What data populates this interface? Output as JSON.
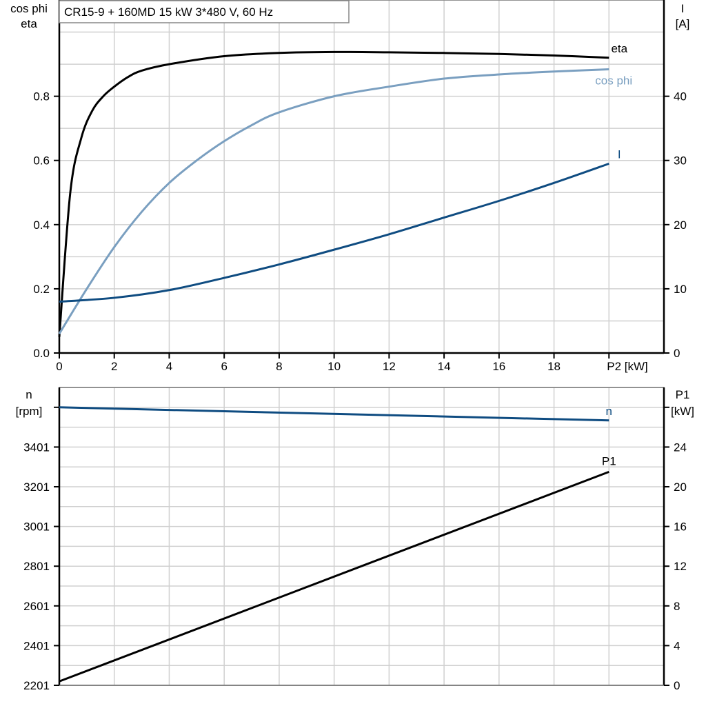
{
  "title": "CR15-9 + 160MD   15 kW   3*480 V, 60 Hz",
  "colors": {
    "eta": "#000000",
    "cos_phi": "#7a9fc0",
    "I": "#0f4c81",
    "n": "#0f4c81",
    "P1": "#000000",
    "grid": "#d0d0d0"
  },
  "chart_data": [
    {
      "type": "line",
      "xlabel": "P2 [kW]",
      "xlim": [
        0,
        22
      ],
      "xticks": [
        0,
        2,
        4,
        6,
        8,
        10,
        12,
        14,
        16,
        18
      ],
      "ylabel_left": [
        "cos phi",
        "eta"
      ],
      "ylim_left": [
        0,
        1.1
      ],
      "yticks_left": [
        "0.0",
        "0.2",
        "0.4",
        "0.6",
        "0.8"
      ],
      "ylabel_right": [
        "I",
        "[A]"
      ],
      "ylim_right": [
        0,
        55
      ],
      "yticks_right": [
        "0",
        "10",
        "20",
        "30",
        "40"
      ],
      "grid": true,
      "series": [
        {
          "name": "eta",
          "axis": "left",
          "x": [
            0,
            0.4,
            0.8,
            1.2,
            1.6,
            2,
            2.5,
            3,
            4,
            6,
            8,
            10,
            12,
            14,
            16,
            18,
            20
          ],
          "y": [
            0.05,
            0.5,
            0.67,
            0.755,
            0.8,
            0.83,
            0.86,
            0.88,
            0.9,
            0.925,
            0.935,
            0.938,
            0.937,
            0.935,
            0.932,
            0.927,
            0.92
          ]
        },
        {
          "name": "cos phi",
          "axis": "left",
          "x": [
            0,
            1,
            2,
            3,
            4,
            5,
            6,
            7,
            8,
            10,
            12,
            14,
            16,
            18,
            20
          ],
          "y": [
            0.06,
            0.2,
            0.33,
            0.44,
            0.53,
            0.6,
            0.66,
            0.71,
            0.75,
            0.8,
            0.83,
            0.855,
            0.868,
            0.877,
            0.884
          ]
        },
        {
          "name": "I",
          "axis": "right",
          "x": [
            0,
            2,
            4,
            6,
            8,
            10,
            12,
            14,
            16,
            18,
            20
          ],
          "y": [
            8,
            8.6,
            9.8,
            11.7,
            13.8,
            16.1,
            18.5,
            21.1,
            23.7,
            26.5,
            29.5
          ]
        }
      ]
    },
    {
      "type": "line",
      "xlim": [
        0,
        22
      ],
      "ylabel_left": [
        "n",
        "[rpm]"
      ],
      "ylim_left": [
        2201,
        3701
      ],
      "yticks_left": [
        "2201",
        "2401",
        "2601",
        "2801",
        "3001",
        "3201",
        "3401"
      ],
      "ylabel_right": [
        "P1",
        "[kW]"
      ],
      "ylim_right": [
        0,
        30
      ],
      "yticks_right": [
        "0",
        "4",
        "8",
        "12",
        "16",
        "20",
        "24"
      ],
      "grid": true,
      "series": [
        {
          "name": "n",
          "axis": "left",
          "x": [
            0,
            20
          ],
          "y": [
            3601,
            3535
          ]
        },
        {
          "name": "P1",
          "axis": "right",
          "x": [
            0,
            20
          ],
          "y": [
            0.4,
            21.5
          ]
        }
      ]
    }
  ]
}
